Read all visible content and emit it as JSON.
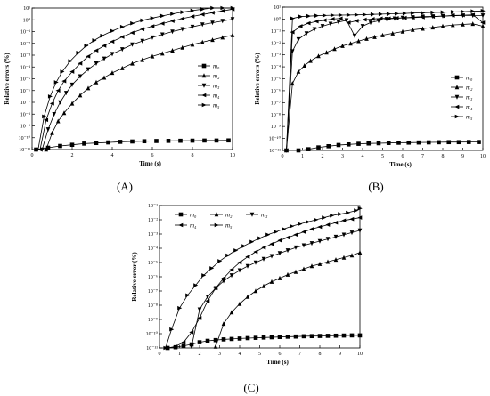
{
  "panel_labels": [
    "(A)",
    "(B)",
    "(C)"
  ],
  "chart_data": [
    {
      "id": "A",
      "type": "line",
      "xlabel": "Time (s)",
      "ylabel": "Relative errors (%)",
      "xlim": [
        0,
        10
      ],
      "ylim_log10": [
        -11,
        1
      ],
      "xticks": [
        "0",
        "2",
        "4",
        "6",
        "8",
        "10"
      ],
      "yticks": [
        "10⁻¹¹",
        "10⁻¹⁰",
        "10⁻⁹",
        "10⁻⁸",
        "10⁻⁷",
        "10⁻⁶",
        "10⁻⁵",
        "10⁻⁴",
        "10⁻³",
        "10⁻²",
        "10⁻¹",
        "10⁰",
        "10¹"
      ],
      "legend": {
        "position": "right",
        "entries": [
          "m₀",
          "m₂",
          "m₃",
          "m₄",
          "m₅"
        ]
      },
      "series": [
        {
          "name": "m₀",
          "marker": "square",
          "x": [
            0.2,
            0.8,
            1.4,
            2,
            2.6,
            3.2,
            3.8,
            4.4,
            5,
            5.6,
            6.2,
            6.8,
            7.4,
            8,
            8.6,
            9.2,
            9.8
          ],
          "log10_y": [
            -11.2,
            -10.85,
            -10.7,
            -10.6,
            -10.5,
            -10.45,
            -10.4,
            -10.35,
            -10.32,
            -10.3,
            -10.28,
            -10.27,
            -10.26,
            -10.25,
            -10.24,
            -10.24,
            -10.23
          ]
        },
        {
          "name": "m₂",
          "marker": "triangle-up",
          "x": [
            0.7,
            1,
            1.3,
            1.6,
            2,
            2.4,
            2.8,
            3.2,
            3.6,
            4,
            4.5,
            5,
            5.5,
            6,
            6.5,
            7,
            7.5,
            8,
            8.5,
            9,
            9.5,
            10
          ],
          "log10_y": [
            -11,
            -9.6,
            -8.6,
            -7.9,
            -7.1,
            -6.4,
            -5.8,
            -5.3,
            -4.9,
            -4.5,
            -4.1,
            -3.7,
            -3.4,
            -3.1,
            -2.85,
            -2.6,
            -2.35,
            -2.1,
            -1.9,
            -1.7,
            -1.5,
            -1.3
          ]
        },
        {
          "name": "m₃",
          "marker": "triangle-down",
          "x": [
            0.5,
            0.8,
            1.1,
            1.4,
            1.7,
            2,
            2.4,
            2.8,
            3.2,
            3.6,
            4,
            4.5,
            5,
            5.5,
            6,
            6.5,
            7,
            7.5,
            8,
            8.5,
            9,
            9.5,
            10
          ],
          "log10_y": [
            -11,
            -9.3,
            -8,
            -7,
            -6.2,
            -5.5,
            -4.8,
            -4.2,
            -3.7,
            -3.3,
            -2.9,
            -2.5,
            -2.1,
            -1.8,
            -1.5,
            -1.25,
            -1,
            -0.8,
            -0.6,
            -0.4,
            -0.25,
            -0.1,
            0.05
          ]
        },
        {
          "name": "m₄",
          "marker": "triangle-left",
          "x": [
            0.4,
            0.7,
            1,
            1.3,
            1.6,
            2,
            2.4,
            2.8,
            3.2,
            3.6,
            4,
            4.5,
            5,
            5.5,
            6,
            6.5,
            7,
            7.5,
            8,
            8.5,
            9,
            9.5,
            10
          ],
          "log10_y": [
            -11,
            -8.5,
            -7.1,
            -6,
            -5.2,
            -4.4,
            -3.7,
            -3.1,
            -2.6,
            -2.2,
            -1.85,
            -1.45,
            -1.1,
            -0.8,
            -0.55,
            -0.32,
            -0.1,
            0.1,
            0.28,
            0.45,
            0.6,
            0.75,
            0.9
          ]
        },
        {
          "name": "m₅",
          "marker": "triangle-right",
          "x": [
            0.3,
            0.6,
            0.9,
            1.2,
            1.5,
            1.9,
            2.3,
            2.7,
            3.1,
            3.5,
            4,
            4.5,
            5,
            5.5,
            6,
            6.5,
            7,
            7.5,
            8,
            8.5,
            9,
            9.5,
            10
          ],
          "log10_y": [
            -11,
            -8.2,
            -6.5,
            -5.3,
            -4.4,
            -3.5,
            -2.8,
            -2.2,
            -1.75,
            -1.35,
            -0.95,
            -0.6,
            -0.3,
            -0.05,
            0.15,
            0.33,
            0.5,
            0.65,
            0.78,
            0.9,
            1,
            1.08,
            1.15
          ]
        }
      ]
    },
    {
      "id": "B",
      "type": "line",
      "xlabel": "Time (s)",
      "ylabel": "Relative errors (%)",
      "xlim": [
        0,
        10
      ],
      "ylim_log10": [
        -11,
        1
      ],
      "xticks": [
        "0",
        "1",
        "2",
        "3",
        "4",
        "5",
        "6",
        "7",
        "8",
        "9",
        "10"
      ],
      "yticks": [
        "10⁻¹¹",
        "10⁻¹⁰",
        "10⁻⁹",
        "10⁻⁸",
        "10⁻⁷",
        "10⁻⁶",
        "10⁻⁵",
        "10⁻⁴",
        "10⁻³",
        "10⁻²",
        "10⁻¹",
        "10⁰",
        "10¹"
      ],
      "legend": {
        "position": "right",
        "entries": [
          "m₀",
          "m₂",
          "m₃",
          "m₄",
          "m₅"
        ]
      },
      "series": [
        {
          "name": "m₀",
          "marker": "square",
          "x": [
            0.8,
            1.3,
            1.8,
            2.3,
            2.8,
            3.3,
            3.8,
            4.3,
            4.8,
            5.3,
            5.8,
            6.3,
            6.8,
            7.3,
            7.8,
            8.3,
            8.8,
            9.3,
            9.8
          ],
          "log10_y": [
            -11.3,
            -10.9,
            -10.75,
            -10.65,
            -10.55,
            -10.5,
            -10.45,
            -10.42,
            -10.4,
            -10.38,
            -10.36,
            -10.35,
            -10.34,
            -10.33,
            -10.32,
            -10.31,
            -10.31,
            -10.3,
            -10.3
          ]
        },
        {
          "name": "m₂",
          "marker": "triangle-up",
          "x": [
            0.2,
            0.5,
            0.8,
            1.1,
            1.4,
            1.8,
            2.2,
            2.6,
            3,
            3.4,
            3.8,
            4.2,
            4.6,
            5,
            5.5,
            6,
            6.5,
            7,
            7.5,
            8,
            8.5,
            9,
            9.5,
            10
          ],
          "log10_y": [
            -11,
            -5.4,
            -4.4,
            -3.9,
            -3.5,
            -3.1,
            -2.8,
            -2.5,
            -2.25,
            -2.05,
            -1.85,
            -1.65,
            -1.5,
            -1.35,
            -1.2,
            -1.05,
            -0.9,
            -0.8,
            -0.7,
            -0.6,
            -0.5,
            -0.45,
            -0.4,
            -0.6
          ]
        },
        {
          "name": "m₃",
          "marker": "triangle-down",
          "x": [
            0.2,
            0.5,
            0.8,
            1.2,
            1.6,
            2,
            2.4,
            2.8,
            3.2,
            3.6,
            4,
            4.4,
            4.8,
            5.2,
            5.6,
            6,
            6.5,
            7,
            7.5,
            8,
            8.5,
            9,
            9.5,
            10
          ],
          "log10_y": [
            -11,
            -2.7,
            -1.7,
            -1.2,
            -0.85,
            -0.6,
            -0.4,
            -0.25,
            -0.1,
            -1.4,
            -0.6,
            -0.3,
            -0.15,
            0,
            0.05,
            0.1,
            0.15,
            0.2,
            0.22,
            0.25,
            0.28,
            0.3,
            0.3,
            0.3
          ]
        },
        {
          "name": "m₄",
          "marker": "triangle-left",
          "x": [
            0.2,
            0.5,
            0.9,
            1.3,
            1.7,
            2.1,
            2.5,
            2.9,
            3.3,
            3.7,
            4.1,
            4.5,
            4.9,
            5.3,
            5.7,
            6.1,
            6.5,
            7,
            7.5,
            8,
            8.5,
            9,
            9.5,
            10
          ],
          "log10_y": [
            -11,
            -1.1,
            -0.6,
            -0.35,
            -0.2,
            -0.1,
            0,
            0.05,
            -0.3,
            -0.15,
            -0.05,
            0,
            0.05,
            0.05,
            0.08,
            0.1,
            0.12,
            0.15,
            0.2,
            0.25,
            0.3,
            0.32,
            0.35,
            -0.3
          ]
        },
        {
          "name": "m₅",
          "marker": "triangle-right",
          "x": [
            0.2,
            0.5,
            0.9,
            1.3,
            1.7,
            2.1,
            2.5,
            2.9,
            3.3,
            3.7,
            4.1,
            4.5,
            4.9,
            5.3,
            5.7,
            6.1,
            6.5,
            7,
            7.5,
            8,
            8.5,
            9,
            9.5,
            10
          ],
          "log10_y": [
            -11,
            0.05,
            0.2,
            0.25,
            0.28,
            0.3,
            0.32,
            0.33,
            0.34,
            0.35,
            0.37,
            0.39,
            0.41,
            0.43,
            0.45,
            0.47,
            0.5,
            0.52,
            0.55,
            0.57,
            0.6,
            0.62,
            0.65,
            0.68
          ]
        }
      ]
    },
    {
      "id": "C",
      "type": "line",
      "xlabel": "Time (s)",
      "ylabel": "Relative error (%)",
      "xlim": [
        0,
        10
      ],
      "ylim_log10": [
        -11,
        -1
      ],
      "xticks": [
        "0",
        "1",
        "2",
        "3",
        "4",
        "5",
        "6",
        "7",
        "8",
        "9",
        "10"
      ],
      "yticks": [
        "10⁻¹¹",
        "10⁻¹⁰",
        "10⁻⁹",
        "10⁻⁸",
        "10⁻⁷",
        "10⁻⁶",
        "10⁻⁵",
        "10⁻⁴",
        "10⁻³",
        "10⁻²",
        "10⁻¹"
      ],
      "legend": {
        "position": "top-left",
        "entries": [
          "m₀",
          "m₂",
          "m₃",
          "m₄",
          "m₅"
        ]
      },
      "series": [
        {
          "name": "m₀",
          "marker": "square",
          "x": [
            0.4,
            0.8,
            1.2,
            1.6,
            2,
            2.4,
            2.8,
            3.2,
            3.6,
            4,
            4.4,
            4.8,
            5.2,
            5.6,
            6,
            6.4,
            6.8,
            7.2,
            7.6,
            8,
            8.4,
            8.8,
            9.2,
            9.6,
            10
          ],
          "log10_y": [
            -11,
            -10.95,
            -10.85,
            -10.75,
            -10.6,
            -10.5,
            -10.45,
            -10.4,
            -10.37,
            -10.34,
            -10.31,
            -10.29,
            -10.27,
            -10.25,
            -10.23,
            -10.21,
            -10.2,
            -10.18,
            -10.17,
            -10.16,
            -10.15,
            -10.14,
            -10.13,
            -10.12,
            -10.12
          ]
        },
        {
          "name": "m₂",
          "marker": "triangle-up",
          "x": [
            2.8,
            3.2,
            3.6,
            4,
            4.4,
            4.8,
            5.2,
            5.6,
            6,
            6.4,
            6.8,
            7.2,
            7.6,
            8,
            8.4,
            8.8,
            9.2,
            9.6,
            10
          ],
          "log10_y": [
            -10.9,
            -9.3,
            -8.5,
            -7.9,
            -7.4,
            -7,
            -6.65,
            -6.35,
            -6.1,
            -5.85,
            -5.65,
            -5.45,
            -5.25,
            -5.1,
            -4.95,
            -4.8,
            -4.65,
            -4.5,
            -4.3
          ]
        },
        {
          "name": "m₃",
          "marker": "triangle-down",
          "x": [
            1.6,
            2,
            2.4,
            2.8,
            3.2,
            3.6,
            4,
            4.4,
            4.8,
            5.2,
            5.6,
            6,
            6.4,
            6.8,
            7.2,
            7.6,
            8,
            8.4,
            8.8,
            9.2,
            9.6,
            10
          ],
          "log10_y": [
            -10.9,
            -8.3,
            -7.4,
            -6.8,
            -6.3,
            -5.9,
            -5.55,
            -5.25,
            -5,
            -4.75,
            -4.55,
            -4.35,
            -4.15,
            -3.95,
            -3.8,
            -3.65,
            -3.5,
            -3.35,
            -3.2,
            -3.05,
            -2.9,
            -2.75
          ]
        },
        {
          "name": "m₄",
          "marker": "triangle-left",
          "x": [
            0.4,
            0.8,
            1.2,
            1.6,
            2,
            2.4,
            2.8,
            3.2,
            3.6,
            4,
            4.4,
            4.8,
            5.2,
            5.6,
            6,
            6.4,
            6.8,
            7.2,
            7.6,
            8,
            8.4,
            8.8,
            9.2,
            9.6,
            10
          ],
          "log10_y": [
            -11,
            -10.9,
            -10.6,
            -9.9,
            -8.9,
            -7.7,
            -6.8,
            -6.1,
            -5.5,
            -5,
            -4.6,
            -4.25,
            -3.95,
            -3.7,
            -3.45,
            -3.25,
            -3.05,
            -2.85,
            -2.65,
            -2.5,
            -2.35,
            -2.2,
            -2.05,
            -1.95,
            -1.85
          ]
        },
        {
          "name": "m₅",
          "marker": "triangle-right",
          "x": [
            0.3,
            0.6,
            1,
            1.4,
            1.8,
            2.2,
            2.6,
            3,
            3.4,
            3.8,
            4.2,
            4.6,
            5,
            5.4,
            5.8,
            6.2,
            6.6,
            7,
            7.4,
            7.8,
            8.2,
            8.6,
            9,
            9.4,
            9.8,
            10
          ],
          "log10_y": [
            -11,
            -9.7,
            -8.2,
            -7.3,
            -6.6,
            -5.9,
            -5.4,
            -4.9,
            -4.5,
            -4.15,
            -3.85,
            -3.55,
            -3.3,
            -3.05,
            -2.85,
            -2.65,
            -2.45,
            -2.3,
            -2.15,
            -2,
            -1.85,
            -1.7,
            -1.6,
            -1.5,
            -1.35,
            -1.2
          ]
        }
      ]
    }
  ]
}
